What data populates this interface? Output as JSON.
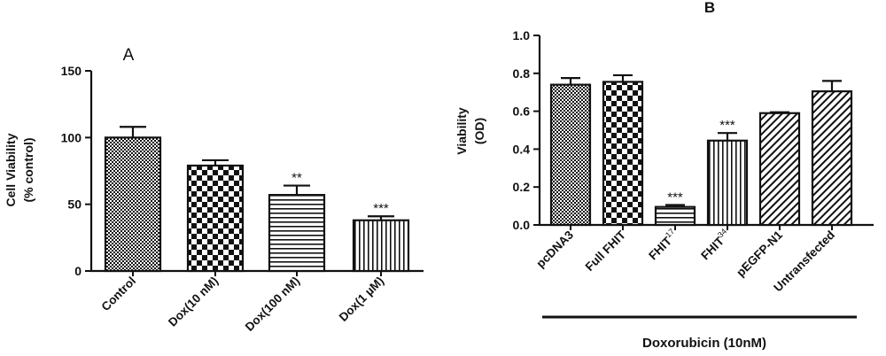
{
  "chart_data": [
    {
      "type": "bar",
      "panel_label": "A",
      "ylabel": [
        "Cell Viability",
        "(% control)"
      ],
      "ylim": [
        0,
        150
      ],
      "yticks": [
        0,
        50,
        100,
        150
      ],
      "categories": [
        "Control",
        "Dox(10 nM)",
        "Dox(100 nM)",
        "Dox(1 µM)"
      ],
      "values": [
        100,
        79,
        57,
        38
      ],
      "errors": [
        8,
        4,
        7,
        3
      ],
      "significance": [
        "",
        "",
        "**",
        "***"
      ],
      "patterns": [
        "fine-check",
        "checker",
        "horizontal-lines",
        "vertical-lines"
      ],
      "grid": false,
      "legend": "none"
    },
    {
      "type": "bar",
      "panel_label": "B",
      "ylabel": [
        "Viability",
        "(OD)"
      ],
      "ylim": [
        0,
        1.0
      ],
      "yticks": [
        0.0,
        0.2,
        0.4,
        0.6,
        0.8,
        1.0
      ],
      "categories": [
        {
          "text": "pcDNA3",
          "sup": ""
        },
        {
          "text": "Full FHIT",
          "sup": ""
        },
        {
          "text": "FHIT",
          "sup": "17"
        },
        {
          "text": "FHIT",
          "sup": "34"
        },
        {
          "text": "pEGFP-N1",
          "sup": ""
        },
        {
          "text": "Untransfected",
          "sup": ""
        }
      ],
      "values": [
        0.74,
        0.755,
        0.095,
        0.445,
        0.59,
        0.705
      ],
      "errors": [
        0.035,
        0.035,
        0.01,
        0.04,
        0.005,
        0.055
      ],
      "significance": [
        "",
        "",
        "***",
        "***",
        "",
        ""
      ],
      "patterns": [
        "fine-check",
        "checker",
        "horizontal-lines",
        "vertical-lines",
        "diagonal-lines",
        "diagonal-lines"
      ],
      "bracket_label": "Doxorubicin (10nM)",
      "grid": false,
      "legend": "none"
    }
  ]
}
